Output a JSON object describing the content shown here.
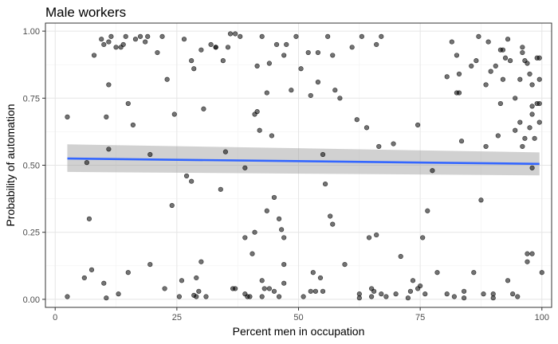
{
  "chart_data": {
    "type": "scatter",
    "title": "Male workers",
    "xlabel": "Percent men in occupation",
    "ylabel": "Probability of automation",
    "xlim": [
      -2,
      102
    ],
    "ylim": [
      -0.03,
      1.03
    ],
    "x_ticks": [
      0,
      25,
      50,
      75,
      100
    ],
    "x_tick_labels": [
      "0",
      "25",
      "50",
      "75",
      "100"
    ],
    "y_ticks": [
      0,
      0.25,
      0.5,
      0.75,
      1
    ],
    "y_tick_labels": [
      "0.00",
      "0.25",
      "0.50",
      "0.75",
      "1.00"
    ],
    "grid": true,
    "colors": {
      "points": "#000000",
      "trend_line": "#3366ff",
      "ribbon": "#999999"
    },
    "trend": {
      "method": "linear",
      "x": [
        2.5,
        99.5
      ],
      "y": [
        0.525,
        0.505
      ],
      "ci_low": [
        0.475,
        0.462
      ],
      "ci_high": [
        0.578,
        0.548
      ]
    },
    "points": [
      [
        2.5,
        0.68
      ],
      [
        2.5,
        0.01
      ],
      [
        6,
        0.08
      ],
      [
        6.5,
        0.51
      ],
      [
        7,
        0.3
      ],
      [
        7.5,
        0.11
      ],
      [
        8,
        0.91
      ],
      [
        9.5,
        0.97
      ],
      [
        10,
        0.95
      ],
      [
        10,
        0.06
      ],
      [
        10.5,
        0.68
      ],
      [
        10.5,
        0.005
      ],
      [
        11,
        0.56
      ],
      [
        11,
        0.8
      ],
      [
        11,
        0.96
      ],
      [
        11.5,
        0.98
      ],
      [
        12.5,
        0.94
      ],
      [
        13,
        0.02
      ],
      [
        13.5,
        0.94
      ],
      [
        14,
        0.95
      ],
      [
        14.5,
        0.98
      ],
      [
        15,
        0.73
      ],
      [
        15,
        0.1
      ],
      [
        16,
        0.65
      ],
      [
        16.5,
        0.97
      ],
      [
        17.5,
        0.98
      ],
      [
        18.5,
        0.96
      ],
      [
        19,
        0.98
      ],
      [
        19.5,
        0.54
      ],
      [
        19.5,
        0.13
      ],
      [
        21,
        0.92
      ],
      [
        22,
        0.98
      ],
      [
        22.5,
        0.04
      ],
      [
        23,
        0.82
      ],
      [
        24,
        0.35
      ],
      [
        24.5,
        0.69
      ],
      [
        25.5,
        0.01
      ],
      [
        26,
        0.07
      ],
      [
        26.5,
        0.97
      ],
      [
        27,
        0.46
      ],
      [
        28,
        0.44
      ],
      [
        28,
        0.89
      ],
      [
        28.5,
        0.86
      ],
      [
        28.5,
        0.015
      ],
      [
        29,
        0.08
      ],
      [
        29,
        0.01
      ],
      [
        29.5,
        0.03
      ],
      [
        30,
        0.93
      ],
      [
        30,
        0.14
      ],
      [
        30.5,
        0.71
      ],
      [
        31,
        0.01
      ],
      [
        32,
        0.95
      ],
      [
        33,
        0.94
      ],
      [
        33,
        0.94
      ],
      [
        34,
        0.41
      ],
      [
        34.5,
        0.89
      ],
      [
        35,
        0.55
      ],
      [
        35.5,
        0.94
      ],
      [
        36,
        0.99
      ],
      [
        36.5,
        0.04
      ],
      [
        37,
        0.99
      ],
      [
        37,
        0.04
      ],
      [
        38,
        0.98
      ],
      [
        39,
        0.49
      ],
      [
        39,
        0.23
      ],
      [
        39,
        0.02
      ],
      [
        39.5,
        0.01
      ],
      [
        40,
        0.01
      ],
      [
        40.5,
        0.17
      ],
      [
        41,
        0.69
      ],
      [
        41,
        0.25
      ],
      [
        41.5,
        0.7
      ],
      [
        41.5,
        0.87
      ],
      [
        42,
        0.63
      ],
      [
        42.5,
        0.98
      ],
      [
        42.5,
        0.07
      ],
      [
        42.5,
        0.01
      ],
      [
        43,
        0.04
      ],
      [
        43.5,
        0.77
      ],
      [
        43.5,
        0.33
      ],
      [
        44,
        0.88
      ],
      [
        44,
        0.04
      ],
      [
        44.5,
        0.61
      ],
      [
        45,
        0.38
      ],
      [
        45,
        0.03
      ],
      [
        45.5,
        0.95
      ],
      [
        46,
        0.3
      ],
      [
        46,
        0.01
      ],
      [
        46.5,
        0.26
      ],
      [
        47,
        0.91
      ],
      [
        47,
        0.23
      ],
      [
        47,
        0.13
      ],
      [
        47,
        0.06
      ],
      [
        47.5,
        0.95
      ],
      [
        48.5,
        0.78
      ],
      [
        49.5,
        0.98
      ],
      [
        50.5,
        0.86
      ],
      [
        51,
        0.01
      ],
      [
        52,
        0.92
      ],
      [
        52.5,
        0.03
      ],
      [
        52.5,
        0.76
      ],
      [
        53,
        0.1
      ],
      [
        53.5,
        0.03
      ],
      [
        54,
        0.81
      ],
      [
        54,
        0.92
      ],
      [
        54.5,
        0.08
      ],
      [
        55,
        0.54
      ],
      [
        55,
        0.03
      ],
      [
        55.5,
        0.43
      ],
      [
        56,
        0.98
      ],
      [
        56.5,
        0.31
      ],
      [
        57,
        0.28
      ],
      [
        57,
        0.91
      ],
      [
        57.5,
        0.78
      ],
      [
        58.5,
        0.75
      ],
      [
        59.5,
        0.13
      ],
      [
        61,
        0.94
      ],
      [
        62,
        0.67
      ],
      [
        62.5,
        0.02
      ],
      [
        62.5,
        0.005
      ],
      [
        63,
        0.98
      ],
      [
        64,
        0.64
      ],
      [
        64.5,
        0.23
      ],
      [
        65,
        0.04
      ],
      [
        65,
        0.01
      ],
      [
        65.5,
        0.03
      ],
      [
        66,
        0.95
      ],
      [
        66,
        0.24
      ],
      [
        66.5,
        0.57
      ],
      [
        67,
        0.98
      ],
      [
        67,
        0.02
      ],
      [
        68,
        0.01
      ],
      [
        69.5,
        0.58
      ],
      [
        70,
        0.02
      ],
      [
        71,
        0.16
      ],
      [
        72.5,
        0.005
      ],
      [
        73,
        0.03
      ],
      [
        73.5,
        0.07
      ],
      [
        74.5,
        0.65
      ],
      [
        74.5,
        0.04
      ],
      [
        75,
        0.05
      ],
      [
        75.5,
        0.23
      ],
      [
        76,
        0.02
      ],
      [
        76.5,
        0.33
      ],
      [
        77.5,
        0.48
      ],
      [
        78.5,
        0.1
      ],
      [
        80.5,
        0.83
      ],
      [
        80.5,
        0.02
      ],
      [
        81.5,
        0.96
      ],
      [
        82,
        0.01
      ],
      [
        82.5,
        0.91
      ],
      [
        82.5,
        0.77
      ],
      [
        83,
        0.84
      ],
      [
        83,
        0.77
      ],
      [
        83.5,
        0.59
      ],
      [
        84,
        0.005
      ],
      [
        84,
        0.03
      ],
      [
        85.5,
        0.87
      ],
      [
        86,
        0.1
      ],
      [
        86.5,
        0.89
      ],
      [
        87,
        0.98
      ],
      [
        87.5,
        0.37
      ],
      [
        88,
        0.02
      ],
      [
        88.5,
        0.57
      ],
      [
        88.5,
        0.8
      ],
      [
        89,
        0.96
      ],
      [
        89.5,
        0.85
      ],
      [
        90,
        0.02
      ],
      [
        90,
        0.005
      ],
      [
        90.5,
        0.87
      ],
      [
        91,
        0.61
      ],
      [
        91.5,
        0.93
      ],
      [
        91.5,
        0.73
      ],
      [
        92,
        0.93
      ],
      [
        92,
        0.82
      ],
      [
        92.5,
        0.9
      ],
      [
        93,
        0.97
      ],
      [
        93,
        0.07
      ],
      [
        93.5,
        0.89
      ],
      [
        94,
        0.02
      ],
      [
        94.5,
        0.75
      ],
      [
        94.5,
        0.63
      ],
      [
        95,
        0.01
      ],
      [
        95.5,
        0.82
      ],
      [
        95.5,
        0.66
      ],
      [
        96,
        0.94
      ],
      [
        96,
        0.92
      ],
      [
        96,
        0.57
      ],
      [
        96.5,
        0.89
      ],
      [
        96.5,
        0.6
      ],
      [
        97,
        0.88
      ],
      [
        97,
        0.17
      ],
      [
        97,
        0.14
      ],
      [
        97.5,
        0.84
      ],
      [
        97.5,
        0.64
      ],
      [
        98,
        0.8
      ],
      [
        98,
        0.69
      ],
      [
        98,
        0.49
      ],
      [
        98,
        0.17
      ],
      [
        98,
        0.72
      ],
      [
        98.5,
        0.6
      ],
      [
        99,
        0.9
      ],
      [
        99,
        0.73
      ],
      [
        99.5,
        0.82
      ],
      [
        99.5,
        0.66
      ],
      [
        99.5,
        0.73
      ],
      [
        99.5,
        0.9
      ],
      [
        100,
        0.1
      ]
    ]
  }
}
